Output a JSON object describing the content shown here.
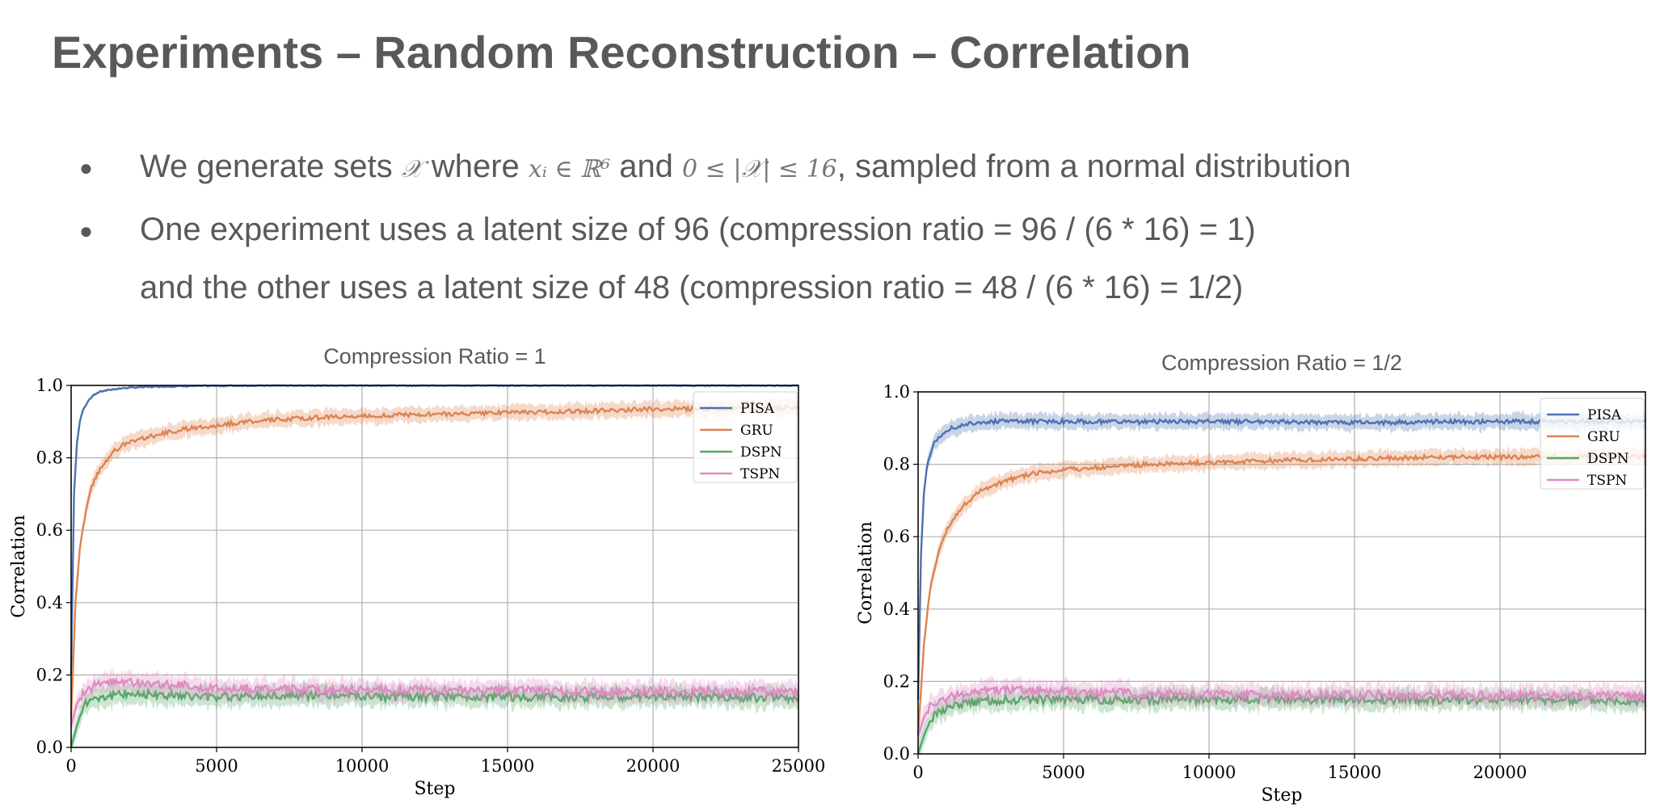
{
  "slide": {
    "title": "Experiments – Random Reconstruction – Correlation",
    "bullets": [
      {
        "pre": "We generate sets ",
        "math1": "𝒳",
        "mid1": " where ",
        "math2": "xᵢ ∈ ℝ⁶",
        "mid2": " and ",
        "math3": "0 ≤ |𝒳| ≤ 16",
        "post": ", sampled from a normal distribution"
      },
      {
        "text": "One experiment uses a latent size of 96 (compression ratio = 96 / (6 * 16) = 1)"
      }
    ],
    "continuation": "and the other uses a latent size of 48 (compression ratio = 48 / (6 * 16) = 1/2)"
  },
  "chart_data": [
    {
      "type": "line",
      "title": "Compression Ratio = 1",
      "xlabel": "Step",
      "ylabel": "Correlation",
      "xlim": [
        0,
        25000
      ],
      "ylim": [
        0.0,
        1.0
      ],
      "xticks": [
        "0",
        "5000",
        "10000",
        "15000",
        "20000",
        "25000"
      ],
      "yticks": [
        "0.0",
        "0.2",
        "0.4",
        "0.6",
        "0.8",
        "1.0"
      ],
      "grid": true,
      "legend": "top-right",
      "series": [
        {
          "name": "PISA",
          "color": "#4c72b0",
          "x": [
            0,
            100,
            200,
            300,
            400,
            600,
            800,
            1000,
            1500,
            2000,
            3000,
            4000,
            5000,
            7000,
            10000,
            15000,
            20000,
            25000
          ],
          "y": [
            0.2,
            0.7,
            0.84,
            0.9,
            0.93,
            0.96,
            0.975,
            0.983,
            0.99,
            0.994,
            0.997,
            0.998,
            0.999,
            1.0,
            1.0,
            1.0,
            1.0,
            1.0
          ]
        },
        {
          "name": "GRU",
          "color": "#dd8452",
          "x": [
            0,
            150,
            300,
            500,
            700,
            1000,
            1500,
            2000,
            3000,
            4000,
            5000,
            6000,
            8000,
            10000,
            12000,
            15000,
            18000,
            20000,
            22000,
            25000
          ],
          "y": [
            0.08,
            0.4,
            0.55,
            0.65,
            0.72,
            0.77,
            0.82,
            0.845,
            0.865,
            0.88,
            0.89,
            0.9,
            0.91,
            0.915,
            0.92,
            0.925,
            0.93,
            0.935,
            0.935,
            0.94
          ]
        },
        {
          "name": "DSPN",
          "color": "#55a868",
          "x": [
            0,
            200,
            400,
            600,
            800,
            1000,
            1500,
            2000,
            3000,
            5000,
            7500,
            10000,
            12500,
            15000,
            17500,
            20000,
            22500,
            25000
          ],
          "y": [
            0.0,
            0.06,
            0.11,
            0.13,
            0.14,
            0.14,
            0.145,
            0.15,
            0.145,
            0.14,
            0.145,
            0.14,
            0.14,
            0.14,
            0.138,
            0.14,
            0.14,
            0.135
          ]
        },
        {
          "name": "TSPN",
          "color": "#dd8cc2",
          "x": [
            0,
            200,
            400,
            600,
            800,
            1000,
            1500,
            2000,
            3000,
            5000,
            7500,
            10000,
            12500,
            15000,
            17500,
            20000,
            22500,
            25000
          ],
          "y": [
            0.06,
            0.12,
            0.15,
            0.16,
            0.17,
            0.175,
            0.18,
            0.18,
            0.175,
            0.165,
            0.16,
            0.16,
            0.158,
            0.158,
            0.155,
            0.155,
            0.155,
            0.155
          ]
        }
      ]
    },
    {
      "type": "line",
      "title": "Compression Ratio = 1/2",
      "xlabel": "Step",
      "ylabel": "Correlation",
      "xlim": [
        0,
        25000
      ],
      "ylim": [
        0.0,
        1.0
      ],
      "xticks": [
        "0",
        "5000",
        "10000",
        "15000",
        "20000"
      ],
      "yticks": [
        "0.0",
        "0.2",
        "0.4",
        "0.6",
        "0.8",
        "1.0"
      ],
      "grid": true,
      "legend": "top-right",
      "series": [
        {
          "name": "PISA",
          "color": "#4c72b0",
          "x": [
            0,
            100,
            200,
            300,
            500,
            700,
            1000,
            1500,
            2000,
            2500,
            3000,
            5000,
            7500,
            10000,
            12500,
            15000,
            17500,
            20000,
            22500,
            25000
          ],
          "y": [
            0.15,
            0.55,
            0.72,
            0.79,
            0.85,
            0.875,
            0.895,
            0.908,
            0.915,
            0.918,
            0.918,
            0.918,
            0.917,
            0.918,
            0.918,
            0.915,
            0.917,
            0.918,
            0.918,
            0.918
          ]
        },
        {
          "name": "GRU",
          "color": "#dd8452",
          "x": [
            0,
            200,
            400,
            700,
            1000,
            1500,
            2000,
            3000,
            4000,
            5000,
            6000,
            8000,
            10000,
            12000,
            15000,
            18000,
            20000,
            22500,
            25000
          ],
          "y": [
            0.05,
            0.3,
            0.45,
            0.56,
            0.62,
            0.68,
            0.72,
            0.755,
            0.775,
            0.785,
            0.79,
            0.8,
            0.805,
            0.81,
            0.815,
            0.82,
            0.82,
            0.82,
            0.82
          ]
        },
        {
          "name": "DSPN",
          "color": "#55a868",
          "x": [
            0,
            200,
            400,
            600,
            1000,
            1500,
            2000,
            3000,
            5000,
            7500,
            10000,
            12500,
            15000,
            17500,
            20000,
            22500,
            25000
          ],
          "y": [
            0.0,
            0.05,
            0.09,
            0.11,
            0.13,
            0.14,
            0.145,
            0.15,
            0.15,
            0.15,
            0.15,
            0.15,
            0.15,
            0.15,
            0.15,
            0.15,
            0.148
          ]
        },
        {
          "name": "TSPN",
          "color": "#dd8cc2",
          "x": [
            0,
            200,
            400,
            600,
            1000,
            1500,
            2000,
            3000,
            5000,
            7500,
            10000,
            12500,
            15000,
            17500,
            20000,
            22500,
            25000
          ],
          "y": [
            0.05,
            0.1,
            0.13,
            0.14,
            0.155,
            0.165,
            0.172,
            0.178,
            0.172,
            0.168,
            0.165,
            0.163,
            0.163,
            0.162,
            0.162,
            0.162,
            0.16
          ]
        }
      ]
    }
  ]
}
